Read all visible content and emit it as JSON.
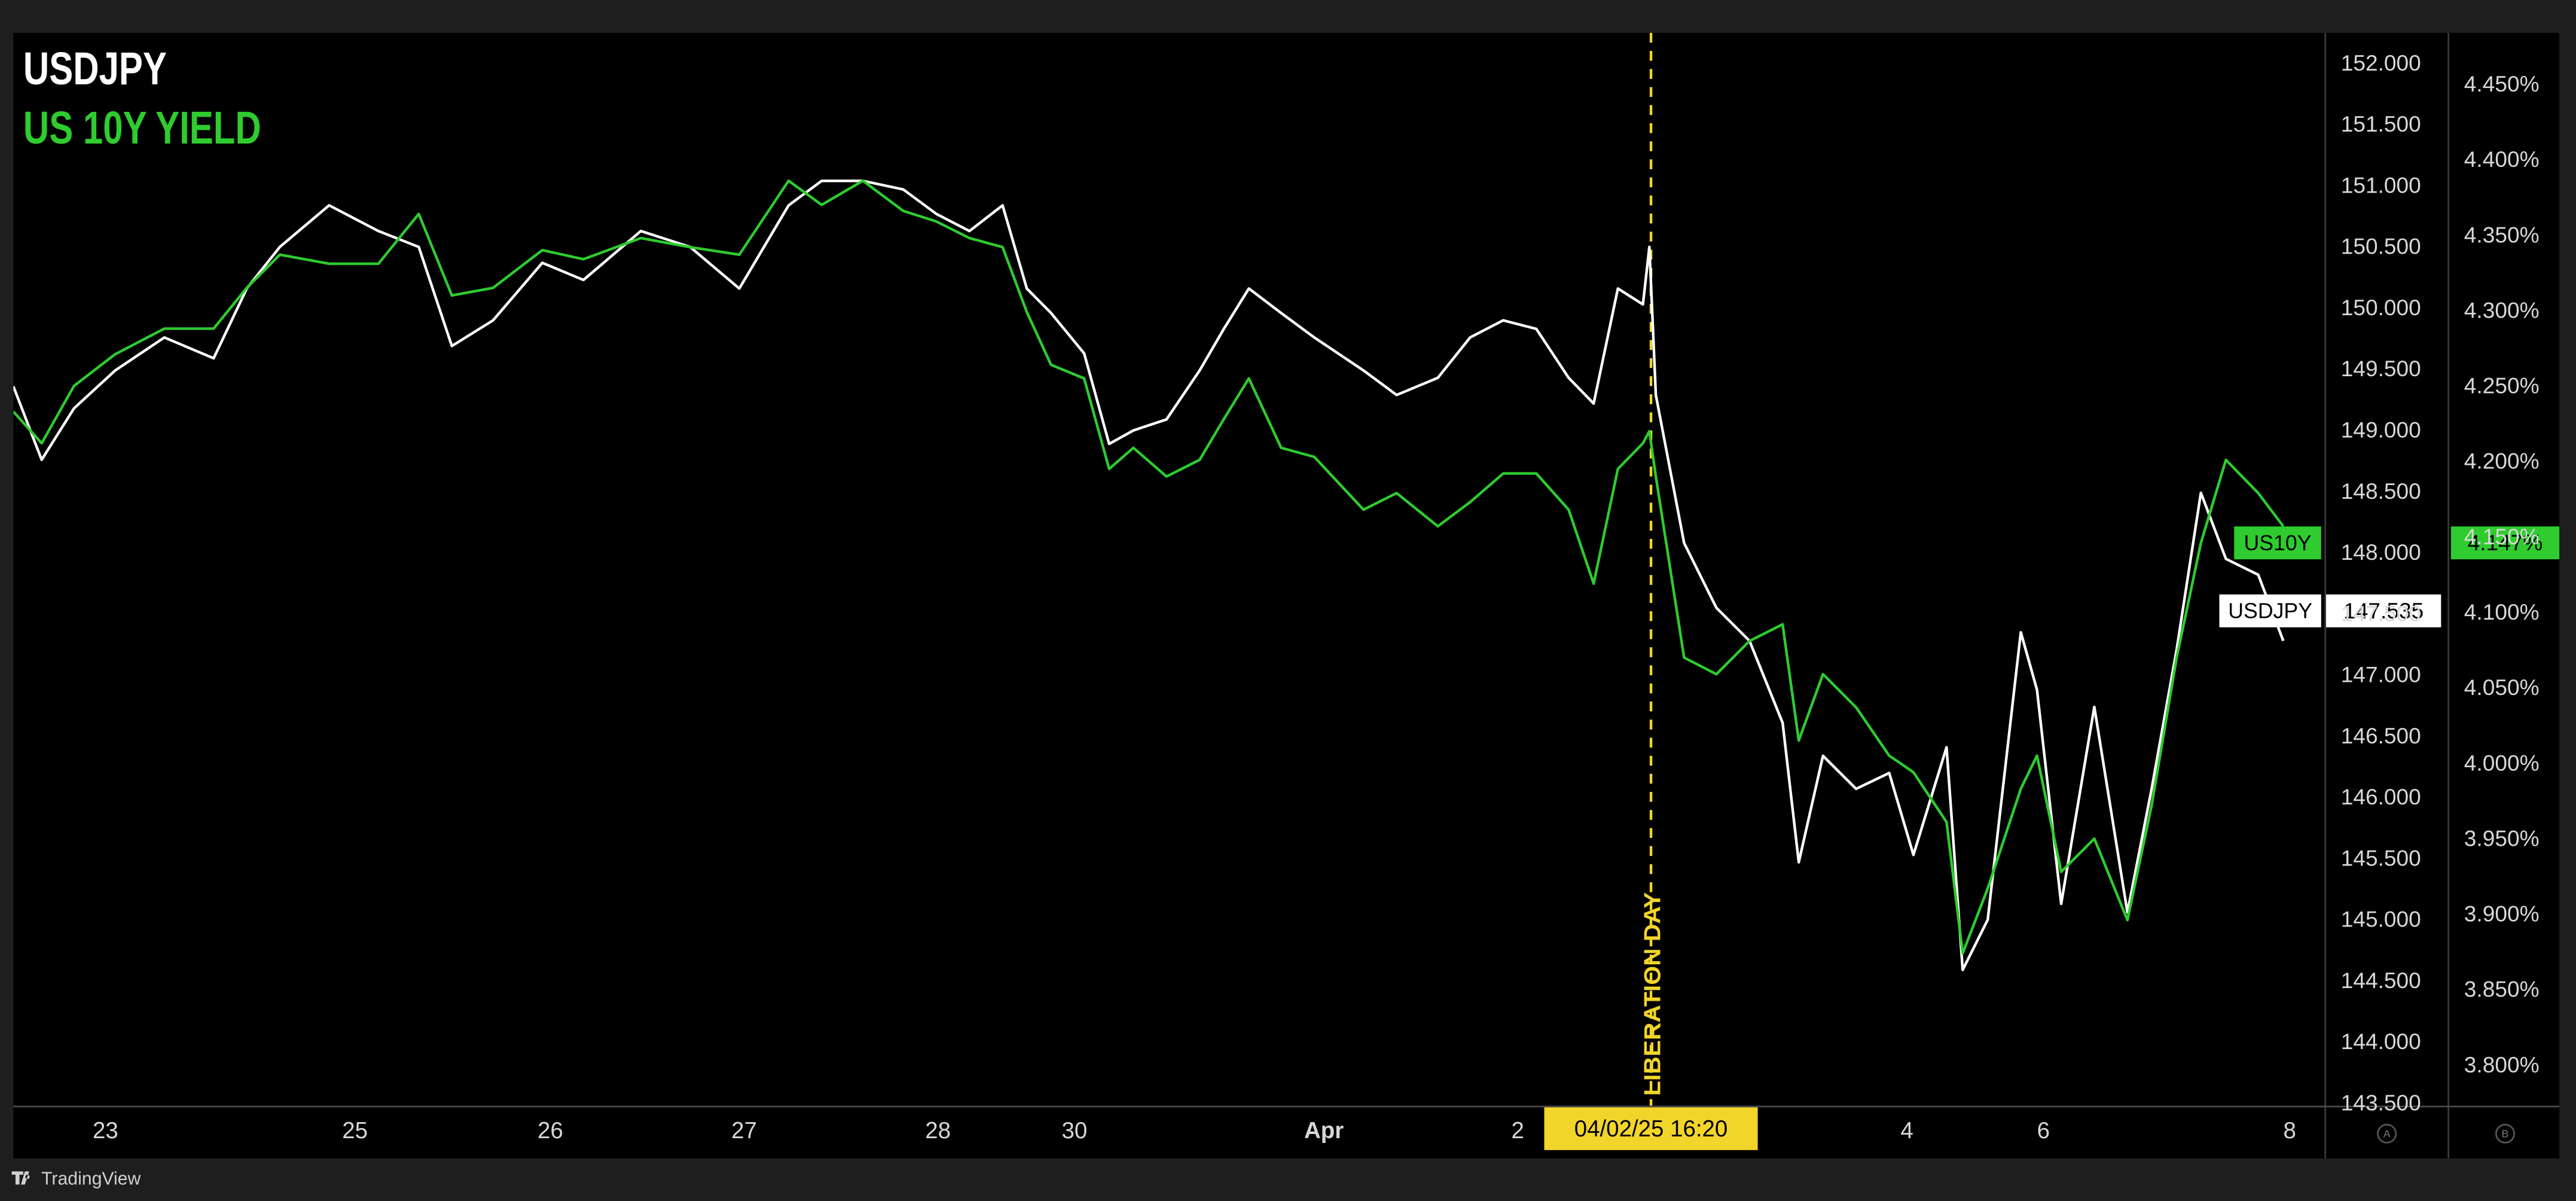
{
  "chart_data": {
    "type": "line",
    "footer": "TradingView",
    "x": [
      0,
      3.5,
      7.5,
      12.6,
      18.7,
      24.8,
      28.9,
      33.0,
      39.1,
      45.2,
      50.2,
      54.3,
      59.4,
      65.5,
      70.6,
      77.7,
      83.8,
      89.9,
      96.0,
      100.1,
      105.2,
      110.2,
      114.3,
      118.4,
      122.5,
      125.5,
      128.5,
      132.6,
      135.7,
      138.7,
      142.8,
      146.9,
      149.9,
      153.0,
      157.0,
      161.1,
      167.2,
      171.3,
      176.4,
      180.4,
      184.5,
      188.6,
      192.6,
      195.7,
      198.7,
      201.8,
      202.6,
      203.4,
      206.9,
      210.9,
      215.0,
      219.1,
      221.1,
      224.1,
      228.2,
      232.3,
      235.3,
      239.4,
      241.4,
      244.5,
      248.6,
      250.6,
      253.6,
      257.7,
      261.8,
      264.8,
      267.9,
      270.9,
      274.0,
      278.0,
      281.1
    ],
    "series": [
      {
        "name": "USDJPY",
        "color": "#ffffff",
        "tag": "USDJPY",
        "last": {
          "value": 147.535,
          "label": "147.535"
        },
        "values": [
          149.37,
          148.77,
          149.19,
          149.5,
          149.77,
          149.6,
          150.17,
          150.51,
          150.85,
          150.64,
          150.51,
          149.7,
          149.91,
          150.38,
          150.24,
          150.64,
          150.51,
          150.17,
          150.85,
          151.05,
          151.05,
          150.98,
          150.78,
          150.64,
          150.85,
          150.17,
          149.97,
          149.64,
          148.9,
          149.01,
          149.1,
          149.5,
          149.84,
          150.17,
          149.97,
          149.77,
          149.5,
          149.3,
          149.44,
          149.77,
          149.91,
          149.84,
          149.44,
          149.23,
          150.17,
          150.04,
          150.51,
          149.3,
          148.09,
          147.56,
          147.29,
          146.62,
          145.48,
          146.35,
          146.08,
          146.21,
          145.54,
          146.42,
          144.6,
          145.01,
          147.36,
          146.89,
          145.14,
          146.75,
          145.07,
          146.08,
          147.22,
          148.5,
          147.96,
          147.83,
          147.29
        ]
      },
      {
        "name": "US 10Y YIELD",
        "color": "#2ecc2e",
        "axis": "y2",
        "tag": "US10Y",
        "last": {
          "value": 4.147,
          "label": "4.147%"
        },
        "values": [
          4.234,
          4.213,
          4.251,
          4.272,
          4.289,
          4.289,
          4.316,
          4.338,
          4.332,
          4.332,
          4.365,
          4.311,
          4.316,
          4.341,
          4.335,
          4.349,
          4.343,
          4.338,
          4.387,
          4.371,
          4.387,
          4.367,
          4.36,
          4.349,
          4.343,
          4.3,
          4.265,
          4.256,
          4.196,
          4.21,
          4.191,
          4.202,
          4.229,
          4.256,
          4.21,
          4.204,
          4.169,
          4.18,
          4.158,
          4.174,
          4.193,
          4.193,
          4.169,
          4.12,
          4.196,
          4.213,
          4.221,
          4.191,
          4.071,
          4.06,
          4.082,
          4.093,
          4.016,
          4.06,
          4.038,
          4.006,
          3.995,
          3.962,
          3.875,
          3.918,
          3.984,
          4.006,
          3.929,
          3.951,
          3.897,
          3.973,
          4.071,
          4.147,
          4.202,
          4.18,
          4.158
        ]
      }
    ],
    "xlim": [
      0,
      286.2
    ],
    "xticks": [
      {
        "value": 11.4,
        "label": "23"
      },
      {
        "value": 42.3,
        "label": "25"
      },
      {
        "value": 66.5,
        "label": "26"
      },
      {
        "value": 90.5,
        "label": "27"
      },
      {
        "value": 114.5,
        "label": "28"
      },
      {
        "value": 131.4,
        "label": "30"
      },
      {
        "value": 162.3,
        "label": "Apr"
      },
      {
        "value": 186.3,
        "label": "2"
      },
      {
        "value": 234.5,
        "label": "4"
      },
      {
        "value": 251.4,
        "label": "6"
      },
      {
        "value": 281.9,
        "label": "8"
      }
    ],
    "ylim": [
      143.49,
      152.26
    ],
    "yticks": [
      {
        "value": 152,
        "label": "152.000"
      },
      {
        "value": 151.5,
        "label": "151.500"
      },
      {
        "value": 151,
        "label": "151.000"
      },
      {
        "value": 150.5,
        "label": "150.500"
      },
      {
        "value": 150,
        "label": "150.000"
      },
      {
        "value": 149.5,
        "label": "149.500"
      },
      {
        "value": 149,
        "label": "149.000"
      },
      {
        "value": 148.5,
        "label": "148.500"
      },
      {
        "value": 148,
        "label": "148.000"
      },
      {
        "value": 147.5,
        "label": "147.500"
      },
      {
        "value": 147,
        "label": "147.000"
      },
      {
        "value": 146.5,
        "label": "146.500"
      },
      {
        "value": 146,
        "label": "146.000"
      },
      {
        "value": 145.5,
        "label": "145.500"
      },
      {
        "value": 145,
        "label": "145.000"
      },
      {
        "value": 144.5,
        "label": "144.500"
      },
      {
        "value": 144,
        "label": "144.000"
      },
      {
        "value": 143.5,
        "label": "143.500"
      }
    ],
    "y2lim": [
      3.774,
      4.485
    ],
    "y2ticks": [
      {
        "value": 4.45,
        "label": "4.450%"
      },
      {
        "value": 4.4,
        "label": "4.400%"
      },
      {
        "value": 4.35,
        "label": "4.350%"
      },
      {
        "value": 4.3,
        "label": "4.300%"
      },
      {
        "value": 4.25,
        "label": "4.250%"
      },
      {
        "value": 4.2,
        "label": "4.200%"
      },
      {
        "value": 4.15,
        "label": "4.150%"
      },
      {
        "value": 4.1,
        "label": "4.100%"
      },
      {
        "value": 4.05,
        "label": "4.050%"
      },
      {
        "value": 4.0,
        "label": "4.000%"
      },
      {
        "value": 3.95,
        "label": "3.950%"
      },
      {
        "value": 3.9,
        "label": "3.900%"
      },
      {
        "value": 3.85,
        "label": "3.850%"
      },
      {
        "value": 3.8,
        "label": "3.800%"
      }
    ],
    "grid": false,
    "event": {
      "x": 202.8,
      "label": "LIBERATION DAY",
      "date_label": "04/02/25  16:20",
      "color": "#f2d52a"
    },
    "axis_buttons": [
      "A",
      "B"
    ]
  }
}
